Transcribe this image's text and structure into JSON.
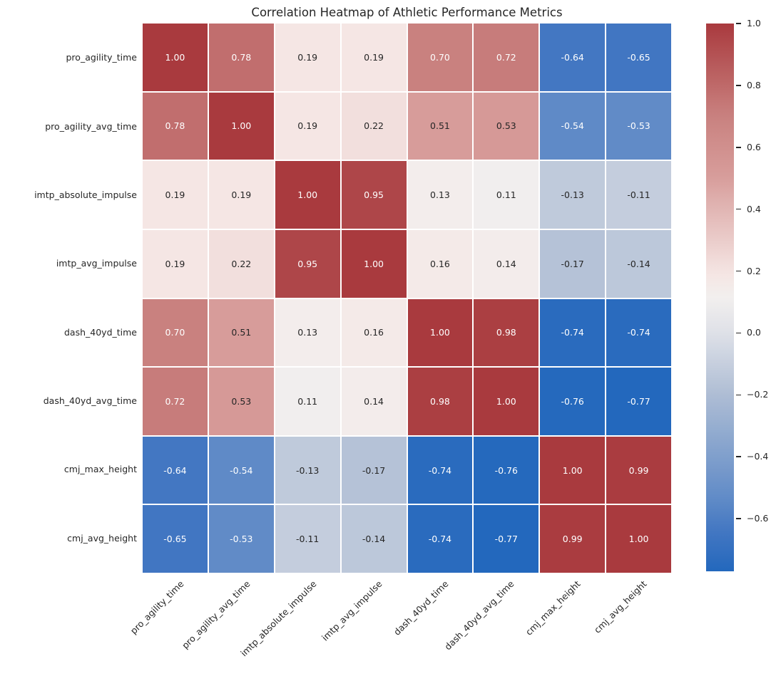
{
  "title": "Correlation Heatmap of Athletic Performance Metrics",
  "chart_data": {
    "type": "heatmap",
    "title": "Correlation Heatmap of Athletic Performance Metrics",
    "categories": [
      "pro_agility_time",
      "pro_agility_avg_time",
      "imtp_absolute_impulse",
      "imtp_avg_impulse",
      "dash_40yd_time",
      "dash_40yd_avg_time",
      "cmj_max_height",
      "cmj_avg_height"
    ],
    "matrix": [
      [
        1.0,
        0.78,
        0.19,
        0.19,
        0.7,
        0.72,
        -0.64,
        -0.65
      ],
      [
        0.78,
        1.0,
        0.19,
        0.22,
        0.51,
        0.53,
        -0.54,
        -0.53
      ],
      [
        0.19,
        0.19,
        1.0,
        0.95,
        0.13,
        0.11,
        -0.13,
        -0.11
      ],
      [
        0.19,
        0.22,
        0.95,
        1.0,
        0.16,
        0.14,
        -0.17,
        -0.14
      ],
      [
        0.7,
        0.51,
        0.13,
        0.16,
        1.0,
        0.98,
        -0.74,
        -0.74
      ],
      [
        0.72,
        0.53,
        0.11,
        0.14,
        0.98,
        1.0,
        -0.76,
        -0.77
      ],
      [
        -0.64,
        -0.54,
        -0.13,
        -0.17,
        -0.74,
        -0.76,
        1.0,
        0.99
      ],
      [
        -0.65,
        -0.53,
        -0.11,
        -0.14,
        -0.74,
        -0.77,
        0.99,
        1.0
      ]
    ],
    "vmin": -0.77,
    "vmax": 1.0,
    "value_decimals": 2,
    "colorbar_position": "right",
    "colorbar_tick_values": [
      1.0,
      0.8,
      0.6,
      0.4,
      0.2,
      0.0,
      -0.2,
      -0.4,
      -0.6
    ],
    "colorbar_tick_labels": [
      "1.0",
      "0.8",
      "0.6",
      "0.4",
      "0.2",
      "0.0",
      "−0.2",
      "−0.4",
      "−0.6"
    ],
    "colormap_anchors": [
      [
        0.0,
        "#2368bd"
      ],
      [
        0.073,
        "#4377c2"
      ],
      [
        0.13,
        "#5f8ac7"
      ],
      [
        0.322,
        "#aebdd4"
      ],
      [
        0.435,
        "#dee1e8"
      ],
      [
        0.5,
        "#f2efee"
      ],
      [
        0.542,
        "#f5e6e4"
      ],
      [
        0.723,
        "#d79c9a"
      ],
      [
        0.831,
        "#c9817f"
      ],
      [
        1.0,
        "#a93a3e"
      ]
    ],
    "annotation_colors": {
      "on_dark": "#ffffff",
      "on_light": "#262626"
    },
    "grid_line_color": "#ffffff",
    "grid": true
  }
}
